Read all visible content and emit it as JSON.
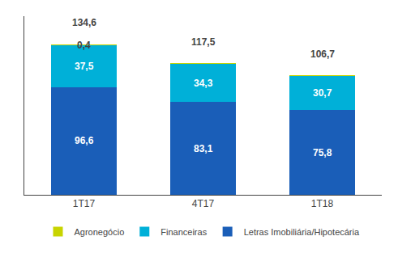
{
  "chart_data": {
    "type": "bar",
    "stacked": true,
    "categories": [
      "1T17",
      "4T17",
      "1T18"
    ],
    "series": [
      {
        "name": "Letras Imobiliária/Hipotecária",
        "color": "#1a5eb8",
        "values": [
          96.6,
          83.1,
          75.8
        ],
        "value_labels": [
          "96,6",
          "83,1",
          "75,8"
        ]
      },
      {
        "name": "Financeiras",
        "color": "#00b0d8",
        "values": [
          37.5,
          34.3,
          30.7
        ],
        "value_labels": [
          "37,5",
          "34,3",
          "30,7"
        ]
      },
      {
        "name": "Agronegócio",
        "color": "#c8d400",
        "values": [
          0.4,
          0.1,
          0.1
        ],
        "value_labels": [
          "0,4",
          null,
          null
        ]
      }
    ],
    "totals": [
      134.6,
      117.5,
      106.7
    ],
    "total_labels": [
      "134,6",
      "117,5",
      "106,7"
    ],
    "data_labels": true,
    "ylim": [
      0,
      160
    ],
    "yticks": [],
    "grid": false,
    "tick_labels": "x",
    "legend": "bottom"
  }
}
